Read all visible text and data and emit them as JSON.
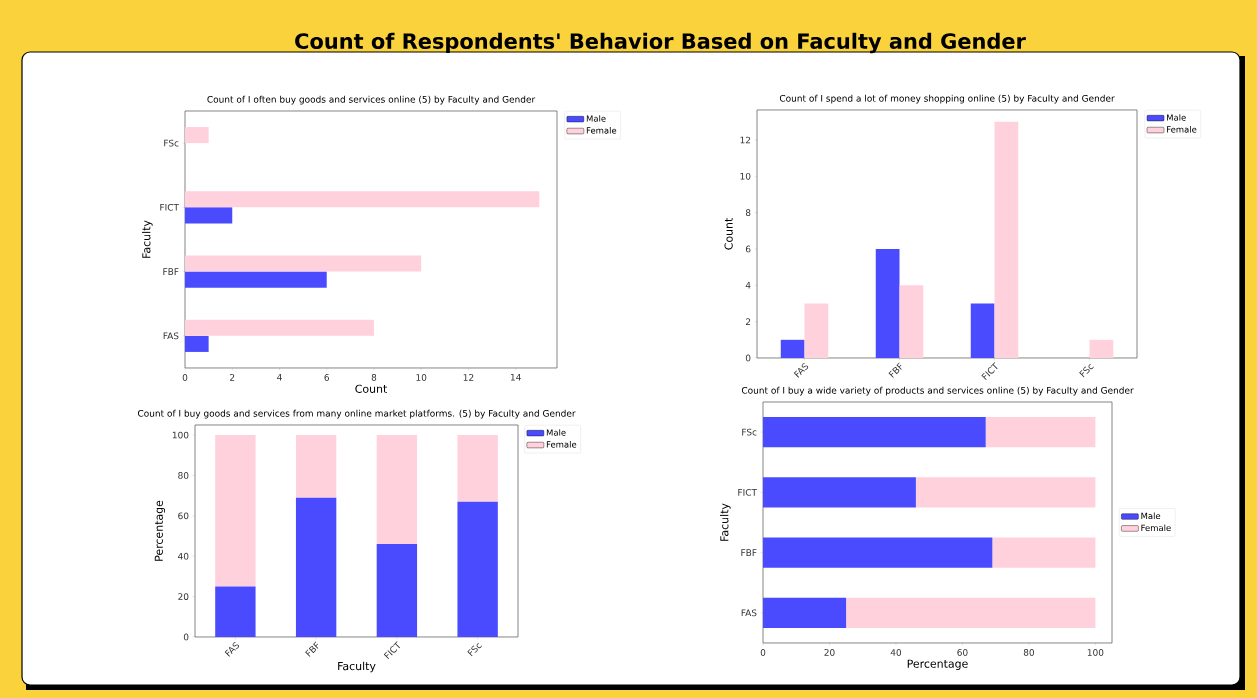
{
  "chart_data": [
    {
      "type": "bar",
      "orientation": "horizontal",
      "title": "Count of I often buy goods and services online (5) by Faculty and Gender",
      "xlabel": "Count",
      "ylabel": "Faculty",
      "annotations": [
        "Count of Respondents' Behavior Based on Faculty and Gender"
      ],
      "categories": [
        "FSc",
        "FICT",
        "FBF",
        "FAS"
      ],
      "series": [
        {
          "name": "Male",
          "color": "#4a4aff",
          "values": [
            null,
            2,
            6,
            1
          ]
        },
        {
          "name": "Female",
          "color": "#ffd1dc",
          "values": [
            1,
            15,
            10,
            8
          ]
        }
      ],
      "xlim": [
        0,
        15.75
      ],
      "xticks": [
        0,
        2,
        4,
        6,
        8,
        10,
        12,
        14
      ],
      "legend": "top right"
    },
    {
      "type": "bar",
      "title": "Count of I spend a lot of money shopping online (5) by Faculty and Gender",
      "ylabel": "Count",
      "categories": [
        "FAS",
        "FBF",
        "FICT",
        "FSc"
      ],
      "series": [
        {
          "name": "Male",
          "color": "#4a4aff",
          "values": [
            1,
            6,
            3,
            null
          ]
        },
        {
          "name": "Female",
          "color": "#ffd1dc",
          "values": [
            3,
            4,
            13,
            1
          ]
        }
      ],
      "ylim": [
        0,
        13.65
      ],
      "yticks": [
        0,
        2,
        4,
        6,
        8,
        10,
        12
      ],
      "legend": "top right"
    },
    {
      "type": "bar",
      "stacked": true,
      "title": "Count of I buy goods and services from many online market platforms. (5) by Faculty and Gender",
      "xlabel": "Faculty",
      "ylabel": "Percentage",
      "categories": [
        "FAS",
        "FBF",
        "FICT",
        "FSc"
      ],
      "series": [
        {
          "name": "Male",
          "color": "#4a4aff",
          "values": [
            25,
            69,
            46,
            67
          ]
        },
        {
          "name": "Female",
          "color": "#ffd1dc",
          "values": [
            75,
            31,
            54,
            33
          ]
        }
      ],
      "ylim": [
        0,
        105
      ],
      "yticks": [
        0,
        20,
        40,
        60,
        80,
        100
      ],
      "legend": "top right"
    },
    {
      "type": "bar",
      "stacked": true,
      "orientation": "horizontal",
      "title": "Count of I buy a wide variety of products and services online (5) by Faculty and Gender",
      "xlabel": "Percentage",
      "ylabel": "Faculty",
      "categories": [
        "FSc",
        "FICT",
        "FBF",
        "FAS"
      ],
      "series": [
        {
          "name": "Male",
          "color": "#4a4aff",
          "values": [
            67,
            46,
            69,
            25
          ]
        },
        {
          "name": "Female",
          "color": "#ffd1dc",
          "values": [
            33,
            54,
            31,
            75
          ]
        }
      ],
      "xlim": [
        0,
        105
      ],
      "xticks": [
        0,
        20,
        40,
        60,
        80,
        100
      ],
      "legend": "right"
    }
  ]
}
